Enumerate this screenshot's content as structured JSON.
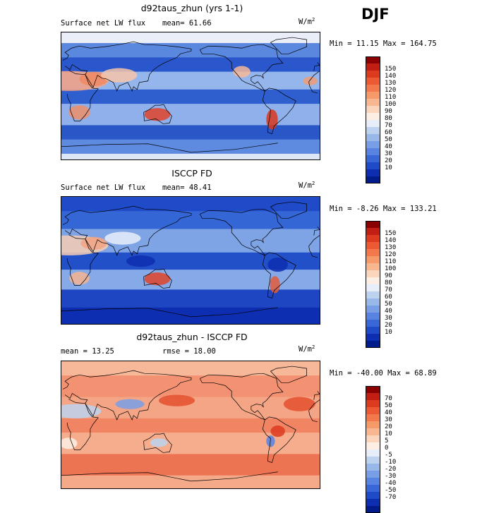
{
  "season": "DJF",
  "panels": [
    {
      "title": "d92taus_zhun (yrs 1-1)",
      "left_label": "Surface net LW flux",
      "stat_label": "mean=  61.66",
      "units_base": "W/m",
      "units_exp": "2",
      "minmax": "Min =  11.15 Max = 164.75",
      "colorbar": {
        "colors": [
          "#8b0000",
          "#c11f13",
          "#dd3b1f",
          "#ec5a33",
          "#f3794c",
          "#f79a6a",
          "#f8b790",
          "#fbd6bd",
          "#fdeee4",
          "#e7eef9",
          "#bcd2ee",
          "#98b8ea",
          "#789ee6",
          "#5883e1",
          "#3a67d7",
          "#1f4ac8",
          "#0d2eb0",
          "#001b8a"
        ],
        "labels": [
          "150",
          "140",
          "130",
          "120",
          "110",
          "100",
          "90",
          "80",
          "70",
          "60",
          "50",
          "40",
          "30",
          "20",
          "10"
        ]
      },
      "map": {
        "scheme": "lw_model",
        "bg": "#3f72d8",
        "bands": [
          {
            "lat": [
              75,
              90
            ],
            "color": "#e9eef9"
          },
          {
            "lat": [
              55,
              75
            ],
            "color": "#5b88df"
          },
          {
            "lat": [
              35,
              55
            ],
            "color": "#2a58cc"
          },
          {
            "lat": [
              10,
              35
            ],
            "color": "#94b6ec"
          },
          {
            "lat": [
              -10,
              10
            ],
            "color": "#2f5fcf"
          },
          {
            "lat": [
              -40,
              -10
            ],
            "color": "#8fb0ea"
          },
          {
            "lat": [
              -60,
              -40
            ],
            "color": "#2a57c8"
          },
          {
            "lat": [
              -80,
              -60
            ],
            "color": "#5e8ae0"
          },
          {
            "lat": [
              -90,
              -80
            ],
            "color": "#dde7f7"
          }
        ],
        "blobs": [
          {
            "lon": 10,
            "lat": 22,
            "rx": 55,
            "ry": 14,
            "color": "#f3a184"
          },
          {
            "lon": 45,
            "lat": 25,
            "rx": 20,
            "ry": 10,
            "color": "#f08a62"
          },
          {
            "lon": 80,
            "lat": 30,
            "rx": 25,
            "ry": 10,
            "color": "#f7c4a8"
          },
          {
            "lon": 25,
            "lat": -22,
            "rx": 15,
            "ry": 10,
            "color": "#ef8f6b"
          },
          {
            "lon": 133,
            "lat": -25,
            "rx": 18,
            "ry": 9,
            "color": "#e0452a"
          },
          {
            "lon": -68,
            "lat": -32,
            "rx": 8,
            "ry": 14,
            "color": "#d9381f"
          },
          {
            "lon": -110,
            "lat": 35,
            "rx": 12,
            "ry": 8,
            "color": "#f6b899"
          },
          {
            "lon": -15,
            "lat": 22,
            "rx": 10,
            "ry": 6,
            "color": "#f09c78"
          }
        ]
      }
    },
    {
      "title": "ISCCP FD",
      "left_label": "Surface net LW flux",
      "stat_label": "mean=  48.41",
      "units_base": "W/m",
      "units_exp": "2",
      "minmax": "Min =  -8.26 Max = 133.21",
      "colorbar": {
        "colors": [
          "#8b0000",
          "#c11f13",
          "#dd3b1f",
          "#ec5a33",
          "#f3794c",
          "#f79a6a",
          "#f8b790",
          "#fbd6bd",
          "#fdeee4",
          "#e7eef9",
          "#bcd2ee",
          "#98b8ea",
          "#789ee6",
          "#5883e1",
          "#3a67d7",
          "#1f4ac8",
          "#0d2eb0",
          "#001b8a"
        ],
        "labels": [
          "150",
          "140",
          "130",
          "120",
          "110",
          "100",
          "90",
          "80",
          "70",
          "60",
          "50",
          "40",
          "30",
          "20",
          "10"
        ]
      },
      "map": {
        "scheme": "lw_obs",
        "bg": "#2a58cc",
        "bands": [
          {
            "lat": [
              70,
              90
            ],
            "color": "#1f4ac8"
          },
          {
            "lat": [
              45,
              70
            ],
            "color": "#3566d6"
          },
          {
            "lat": [
              12,
              45
            ],
            "color": "#7ea4e6"
          },
          {
            "lat": [
              -12,
              12
            ],
            "color": "#2250c9"
          },
          {
            "lat": [
              -40,
              -12
            ],
            "color": "#86a9e8"
          },
          {
            "lat": [
              -65,
              -40
            ],
            "color": "#1e46c2"
          },
          {
            "lat": [
              -90,
              -65
            ],
            "color": "#0d2eb0"
          }
        ],
        "blobs": [
          {
            "lon": 10,
            "lat": 22,
            "rx": 55,
            "ry": 14,
            "color": "#f7ccb3"
          },
          {
            "lon": 45,
            "lat": 25,
            "rx": 18,
            "ry": 9,
            "color": "#f3a383"
          },
          {
            "lon": 85,
            "lat": 32,
            "rx": 25,
            "ry": 9,
            "color": "#e8eef9"
          },
          {
            "lon": 25,
            "lat": -24,
            "rx": 14,
            "ry": 9,
            "color": "#f6b48f"
          },
          {
            "lon": 133,
            "lat": -25,
            "rx": 18,
            "ry": 9,
            "color": "#e0452a"
          },
          {
            "lon": -64,
            "lat": -33,
            "rx": 7,
            "ry": 12,
            "color": "#e25c3c"
          },
          {
            "lon": -60,
            "lat": -5,
            "rx": 14,
            "ry": 10,
            "color": "#0d2eb0"
          },
          {
            "lon": 110,
            "lat": 0,
            "rx": 20,
            "ry": 8,
            "color": "#0d2eb0"
          }
        ]
      }
    },
    {
      "title": "d92taus_zhun - ISCCP FD",
      "left_label": "mean =  13.25",
      "stat_label": "rmse =  18.00",
      "units_base": "W/m",
      "units_exp": "2",
      "minmax": "Min = -40.00 Max =  68.89",
      "colorbar": {
        "colors": [
          "#8b0000",
          "#c11f13",
          "#dd3b1f",
          "#ec5a33",
          "#f3794c",
          "#f79a6a",
          "#f8b790",
          "#fbd6bd",
          "#fdeee4",
          "#e7eef9",
          "#bcd2ee",
          "#98b8ea",
          "#789ee6",
          "#5883e1",
          "#3a67d7",
          "#1f4ac8",
          "#0d2eb0",
          "#001b8a"
        ],
        "labels": [
          "70",
          "50",
          "40",
          "30",
          "20",
          "10",
          "5",
          "0",
          "-5",
          "-10",
          "-20",
          "-30",
          "-40",
          "-50",
          "-70"
        ]
      },
      "map": {
        "scheme": "diff",
        "bg": "#f49a78",
        "bands": [
          {
            "lat": [
              70,
              90
            ],
            "color": "#f6b899"
          },
          {
            "lat": [
              40,
              70
            ],
            "color": "#f29272"
          },
          {
            "lat": [
              10,
              40
            ],
            "color": "#f4a585"
          },
          {
            "lat": [
              -10,
              10
            ],
            "color": "#f08463"
          },
          {
            "lat": [
              -40,
              -10
            ],
            "color": "#f5ad8e"
          },
          {
            "lat": [
              -70,
              -40
            ],
            "color": "#ec7452"
          },
          {
            "lat": [
              -90,
              -70
            ],
            "color": "#f4a989"
          }
        ],
        "blobs": [
          {
            "lon": 20,
            "lat": 20,
            "rx": 35,
            "ry": 10,
            "color": "#bcd2ee"
          },
          {
            "lon": 95,
            "lat": 30,
            "rx": 20,
            "ry": 7,
            "color": "#789ee6"
          },
          {
            "lon": 135,
            "lat": -24,
            "rx": 12,
            "ry": 6,
            "color": "#bcd2ee"
          },
          {
            "lon": -70,
            "lat": -22,
            "rx": 6,
            "ry": 8,
            "color": "#5883e1"
          },
          {
            "lon": -30,
            "lat": 30,
            "rx": 22,
            "ry": 10,
            "color": "#e4502f"
          },
          {
            "lon": 160,
            "lat": 35,
            "rx": 25,
            "ry": 8,
            "color": "#e4502f"
          },
          {
            "lon": -60,
            "lat": -8,
            "rx": 10,
            "ry": 8,
            "color": "#dd3b1f"
          },
          {
            "lon": 10,
            "lat": -25,
            "rx": 12,
            "ry": 8,
            "color": "#fdeee4"
          }
        ]
      }
    }
  ]
}
